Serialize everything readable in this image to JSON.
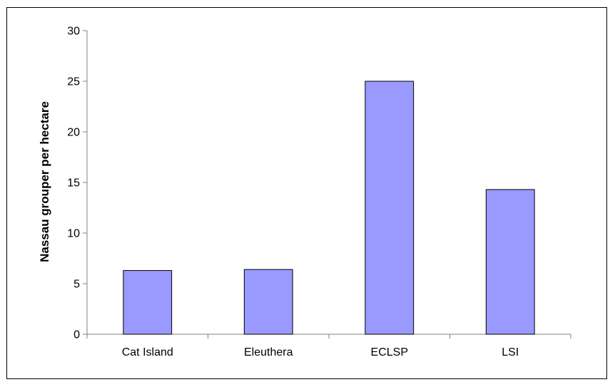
{
  "chart_data": {
    "type": "bar",
    "title": "",
    "xlabel": "",
    "ylabel": "Nassau grouper per hectare",
    "categories": [
      "Cat Island",
      "Eleuthera",
      "ECLSP",
      "LSI"
    ],
    "values": [
      6.3,
      6.4,
      25.0,
      14.3
    ],
    "ylim": [
      0,
      30
    ],
    "yticks": [
      0,
      5,
      10,
      15,
      20,
      25,
      30
    ],
    "grid": false,
    "legend": "none",
    "bar_color": "#9999ff",
    "bar_stroke": "#000000",
    "axis_color": "#808080"
  }
}
